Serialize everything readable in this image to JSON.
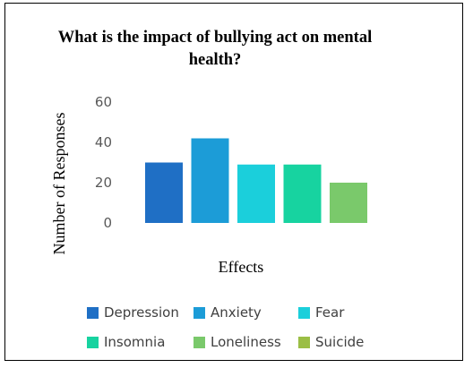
{
  "chart_data": {
    "type": "bar",
    "title": "What is the impact of bullying act on mental health?",
    "xlabel": "Effects",
    "ylabel": "Number of Responses",
    "ylim": [
      0,
      60
    ],
    "yticks": [
      0,
      20,
      40,
      60
    ],
    "grid": false,
    "legend_position": "bottom",
    "series": [
      {
        "name": "Depression",
        "value": 30,
        "color": "#1F6FC5"
      },
      {
        "name": "Anxiety",
        "value": 42,
        "color": "#1C9CD7"
      },
      {
        "name": "Fear",
        "value": 29,
        "color": "#1BCFDB"
      },
      {
        "name": "Insomnia",
        "value": 29,
        "color": "#17D3A0"
      },
      {
        "name": "Loneliness",
        "value": 20,
        "color": "#7AC96B"
      },
      {
        "name": "Suicide",
        "value": 0,
        "color": "#9BBE45"
      }
    ]
  }
}
